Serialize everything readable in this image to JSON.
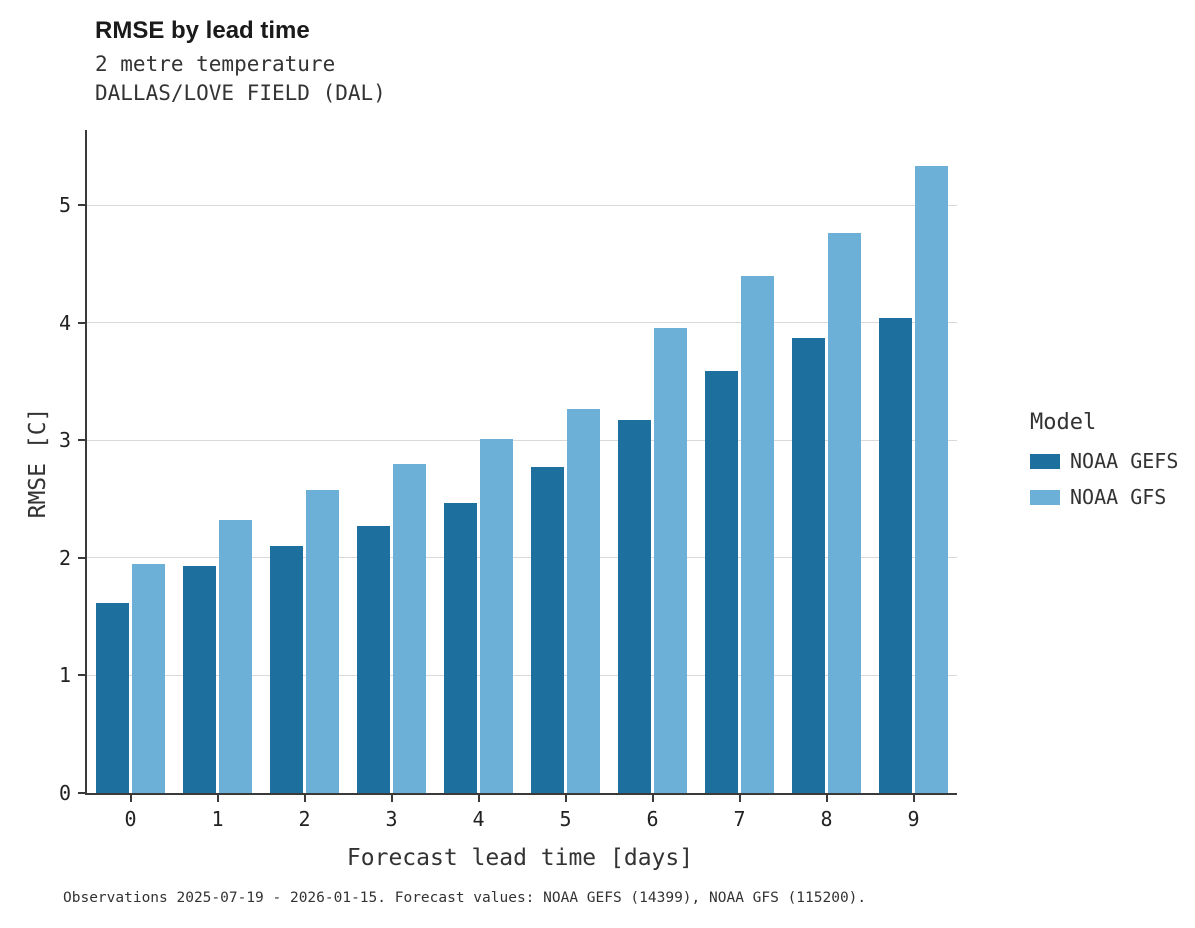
{
  "header": {
    "title": "RMSE by lead time",
    "subtitle1": "2 metre temperature",
    "subtitle2": "DALLAS/LOVE FIELD (DAL)"
  },
  "axes": {
    "xlabel": "Forecast lead time [days]",
    "ylabel": "RMSE [C]"
  },
  "legend": {
    "title": "Model",
    "entries": [
      {
        "label": "NOAA GEFS",
        "color": "#1d6f9e"
      },
      {
        "label": "NOAA GFS",
        "color": "#6cb0d7"
      }
    ]
  },
  "footer": {
    "note": "Observations 2025-07-19 - 2026-01-15. Forecast values: NOAA GEFS (14399), NOAA GFS (115200)."
  },
  "chart_data": {
    "type": "bar",
    "title": "RMSE by lead time",
    "subtitle": "2 metre temperature — DALLAS/LOVE FIELD (DAL)",
    "xlabel": "Forecast lead time [days]",
    "ylabel": "RMSE [C]",
    "categories": [
      "0",
      "1",
      "2",
      "3",
      "4",
      "5",
      "6",
      "7",
      "8",
      "9"
    ],
    "series": [
      {
        "name": "NOAA GEFS",
        "color": "#1d6f9e",
        "values": [
          1.62,
          1.93,
          2.1,
          2.27,
          2.47,
          2.77,
          3.17,
          3.59,
          3.87,
          4.04
        ]
      },
      {
        "name": "NOAA GFS",
        "color": "#6cb0d7",
        "values": [
          1.95,
          2.32,
          2.58,
          2.8,
          3.01,
          3.27,
          3.96,
          4.4,
          4.76,
          5.33
        ]
      }
    ],
    "ylim": [
      0,
      5.64
    ],
    "yticks": [
      0,
      1,
      2,
      3,
      4,
      5
    ],
    "grid": true,
    "legend_position": "right"
  }
}
